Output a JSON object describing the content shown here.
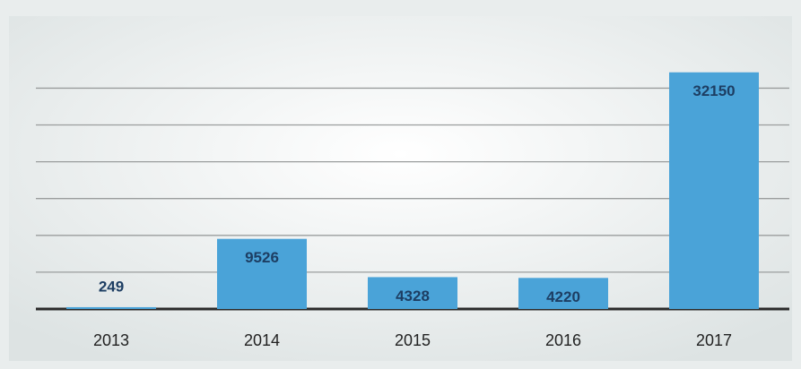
{
  "chart_data": {
    "type": "bar",
    "categories": [
      "2013",
      "2014",
      "2015",
      "2016",
      "2017"
    ],
    "values": [
      249,
      9526,
      4328,
      4220,
      32150
    ],
    "color": "#4aa3d8",
    "ylim": [
      0,
      36500
    ],
    "yticks": [
      0,
      5000,
      10000,
      15000,
      20000,
      25000,
      30000
    ],
    "grid": true
  }
}
